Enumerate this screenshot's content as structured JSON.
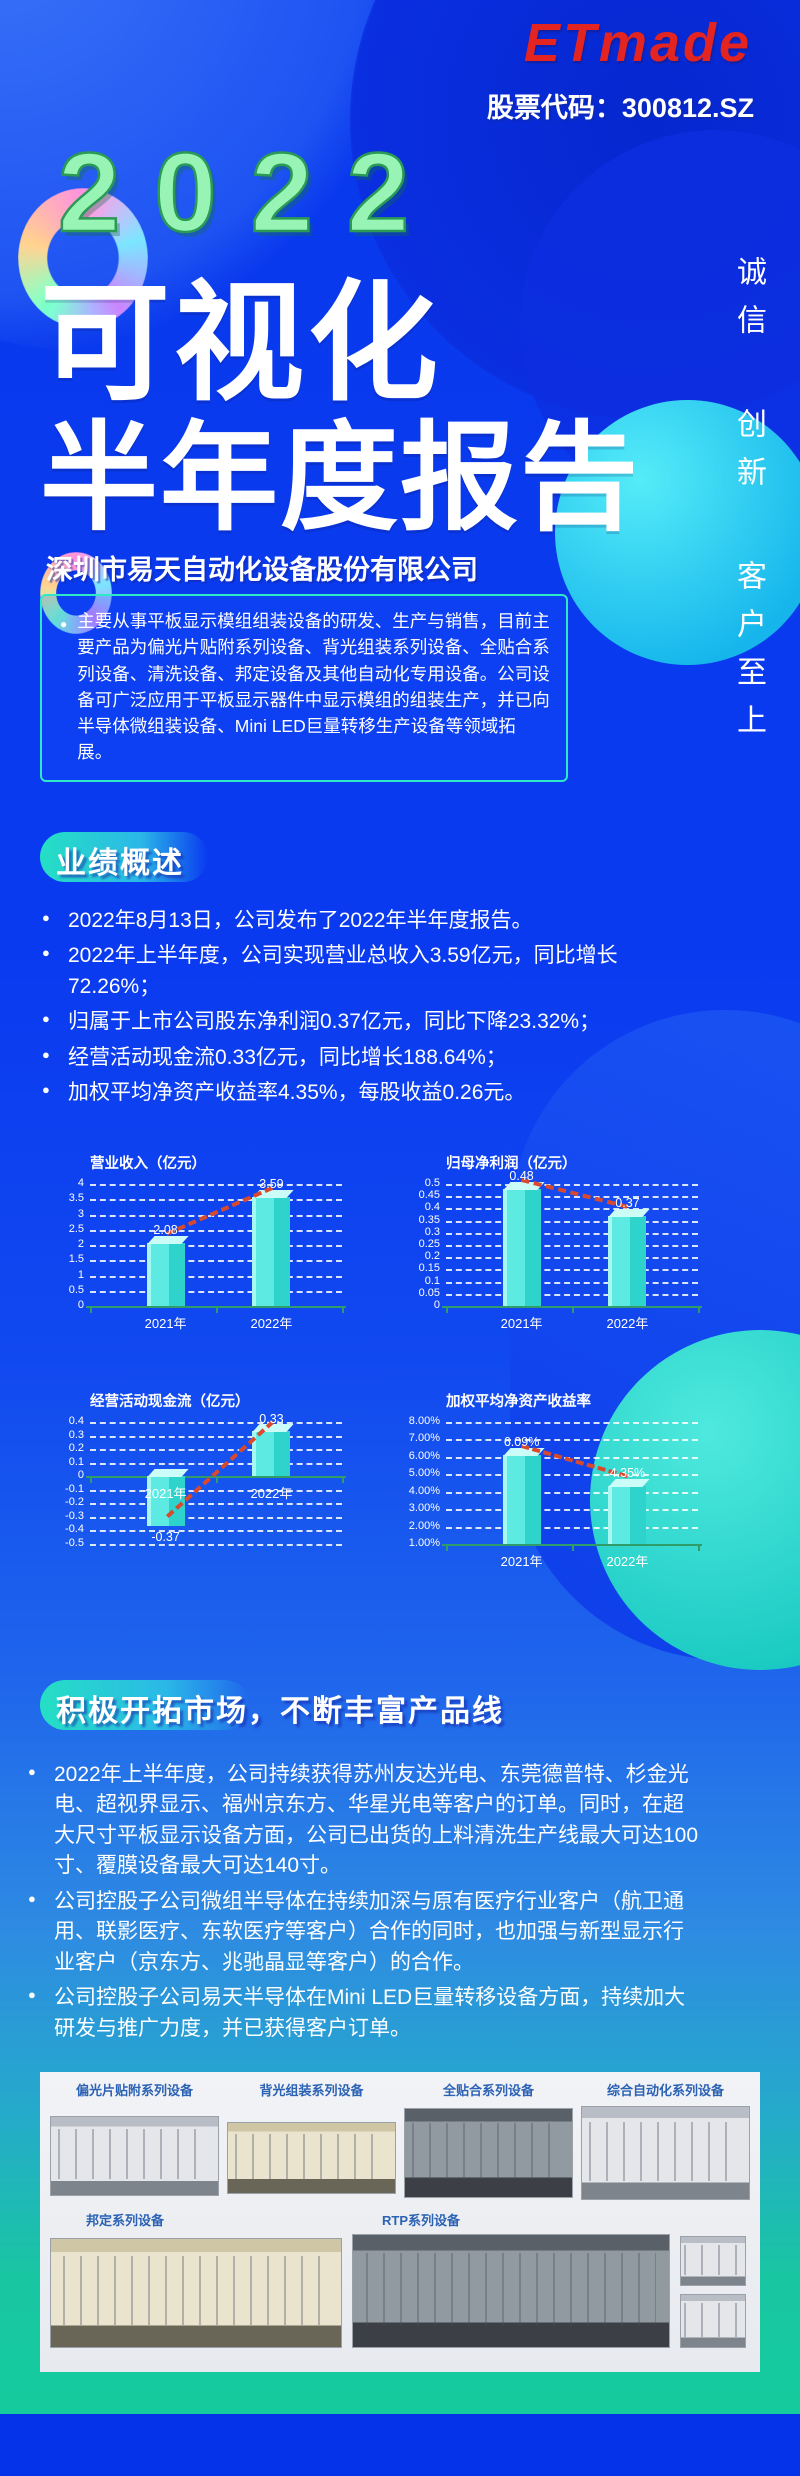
{
  "header": {
    "logo": "ETmade",
    "stock_label": "股票代码：300812.SZ"
  },
  "hero": {
    "year": "2022",
    "title_line1": "可视化",
    "title_line2": "半年度报告",
    "company": "深圳市易天自动化设备股份有限公司",
    "intro_bullet": "主要从事平板显示模组组装设备的研发、生产与销售，目前主要产品为偏光片贴附系列设备、背光组装系列设备、全贴合系列设备、清洗设备、邦定设备及其他自动化专用设备。公司设备可广泛应用于平板显示器件中显示模组的组装生产，并已向半导体微组装设备、Mini LED巨量转移生产设备等领域拓展。",
    "slogan_vertical": [
      "诚信",
      "创新",
      "客户至上"
    ]
  },
  "performance": {
    "heading": "业绩概述",
    "bullets": [
      "2022年8月13日，公司发布了2022年半年度报告。",
      "2022年上半年度，公司实现营业总收入3.59亿元，同比增长72.26%；",
      "归属于上市公司股东净利润0.37亿元，同比下降23.32%；",
      "经营活动现金流0.33亿元，同比增长188.64%；",
      "加权平均净资产收益率4.35%，每股收益0.26元。"
    ]
  },
  "market": {
    "heading": "积极开拓市场，不断丰富产品线",
    "bullets": [
      "2022年上半年度，公司持续获得苏州友达光电、东莞德普特、杉金光电、超视界显示、福州京东方、华星光电等客户的订单。同时，在超大尺寸平板显示设备方面，公司已出货的上料清洗生产线最大可达100寸、覆膜设备最大可达140寸。",
      "公司控股子公司微组半导体在持续加深与原有医疗行业客户（航卫通用、联影医疗、东软医疗等客户）合作的同时，也加强与新型显示行业客户（京东方、兆驰晶显等客户）的合作。",
      "公司控股子公司易天半导体在Mini LED巨量转移设备方面，持续加大研发与推广力度，并已获得客户订单。"
    ]
  },
  "products": {
    "row1": [
      "偏光片贴附系列设备",
      "背光组装系列设备",
      "全贴合系列设备",
      "综合自动化系列设备"
    ],
    "row2": [
      "邦定系列设备",
      "RTP系列设备"
    ]
  },
  "chart_data": [
    {
      "type": "bar",
      "title": "营业收入（亿元）",
      "categories": [
        "2021年",
        "2022年"
      ],
      "values": [
        2.08,
        3.59
      ],
      "value_labels": [
        "2.08",
        "3.59"
      ],
      "ylim": [
        0,
        4
      ],
      "tick_values": [
        4,
        3.5,
        3,
        2.5,
        2,
        1.5,
        1,
        0.5,
        0
      ],
      "tick_labels": [
        "4",
        "3.5",
        "3",
        "2.5",
        "2",
        "1.5",
        "1",
        "0.5",
        "0"
      ],
      "trend": "up",
      "grid": "dashed",
      "legend_position": "none"
    },
    {
      "type": "bar",
      "title": "归母净利润（亿元）",
      "categories": [
        "2021年",
        "2022年"
      ],
      "values": [
        0.48,
        0.37
      ],
      "value_labels": [
        "0.48",
        "0.37"
      ],
      "ylim": [
        0,
        0.5
      ],
      "tick_values": [
        0.5,
        0.45,
        0.4,
        0.35,
        0.3,
        0.25,
        0.2,
        0.15,
        0.1,
        0.05,
        0
      ],
      "tick_labels": [
        "0.5",
        "0.45",
        "0.4",
        "0.35",
        "0.3",
        "0.25",
        "0.2",
        "0.15",
        "0.1",
        "0.05",
        "0"
      ],
      "trend": "down",
      "grid": "dashed",
      "legend_position": "none"
    },
    {
      "type": "bar",
      "title": "经营活动现金流（亿元）",
      "categories": [
        "2021年",
        "2022年"
      ],
      "values": [
        -0.37,
        0.33
      ],
      "value_labels": [
        "-0.37",
        "0.33"
      ],
      "ylim": [
        -0.5,
        0.4
      ],
      "tick_values": [
        0.4,
        0.3,
        0.2,
        0.1,
        0,
        -0.1,
        -0.2,
        -0.3,
        -0.4,
        -0.5
      ],
      "tick_labels": [
        "0.4",
        "0.3",
        "0.2",
        "0.1",
        "0",
        "-0.1",
        "-0.2",
        "-0.3",
        "-0.4",
        "-0.5"
      ],
      "trend": "up",
      "grid": "dashed",
      "legend_position": "none"
    },
    {
      "type": "bar",
      "title": "加权平均净资产收益率",
      "categories": [
        "2021年",
        "2022年"
      ],
      "values": [
        6.09,
        4.35
      ],
      "value_labels": [
        "6.09%",
        "4.35%"
      ],
      "ylim": [
        1,
        8
      ],
      "tick_values": [
        8,
        7,
        6,
        5,
        4,
        3,
        2,
        1
      ],
      "tick_labels": [
        "8.00%",
        "7.00%",
        "6.00%",
        "5.00%",
        "4.00%",
        "3.00%",
        "2.00%",
        "1.00%"
      ],
      "trend": "down",
      "grid": "dashed",
      "legend_position": "none"
    }
  ],
  "colors": {
    "background_blue": "#0A3AF0",
    "background_teal_bottom": "#12CE9C",
    "footer_blue": "#0433EA",
    "logo_red": "#E42420",
    "year_green": "#97F4B5",
    "accent_teal": "#2FE8C8",
    "bar_cyan": "#5CEAE3",
    "trend_line_red": "#D8492E",
    "axis_green": "#2F9C6A",
    "product_label_blue": "#2B62B4",
    "card_background": "#EFF1F5"
  }
}
